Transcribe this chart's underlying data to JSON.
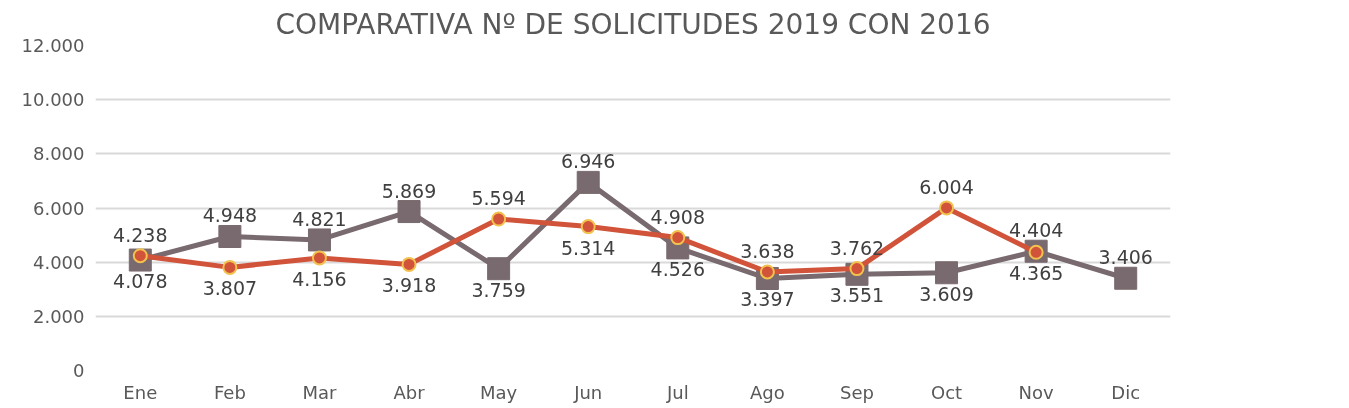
{
  "chart_data": {
    "type": "line",
    "title": "COMPARATIVA Nº DE SOLICITUDES 2019 CON 2016",
    "categories": [
      "Ene",
      "Feb",
      "Mar",
      "Abr",
      "May",
      "Jun",
      "Jul",
      "Ago",
      "Sep",
      "Oct",
      "Nov",
      "Dic"
    ],
    "series": [
      {
        "color": "#d0533a",
        "marker": "circle",
        "values": [
          4238,
          3807,
          4156,
          3918,
          5594,
          5314,
          4908,
          3638,
          3762,
          6004,
          4365,
          null
        ],
        "value_labels": [
          "4.238",
          "3.807",
          "4.156",
          "3.918",
          "5.594",
          "5.314",
          "4.908",
          "3.638",
          "3.762",
          "6.004",
          "4.365",
          null
        ]
      },
      {
        "color": "#786a6e",
        "marker": "square",
        "values": [
          4078,
          4948,
          4821,
          5869,
          3759,
          6946,
          4526,
          3397,
          3551,
          3609,
          4404,
          3406
        ],
        "value_labels": [
          "4.078",
          "4.948",
          "4.821",
          "5.869",
          "3.759",
          "6.946",
          "4.526",
          "3.397",
          "3.551",
          "3.609",
          "4.404",
          "3.406"
        ]
      }
    ],
    "ylim": [
      0,
      12000
    ],
    "yticks": [
      {
        "value": 0,
        "label": "0"
      },
      {
        "value": 2000,
        "label": "2.000"
      },
      {
        "value": 4000,
        "label": "4.000"
      },
      {
        "value": 6000,
        "label": "6.000"
      },
      {
        "value": 8000,
        "label": "8.000"
      },
      {
        "value": 10000,
        "label": "10.000"
      },
      {
        "value": 12000,
        "label": "12.000"
      }
    ],
    "grid": "y"
  }
}
